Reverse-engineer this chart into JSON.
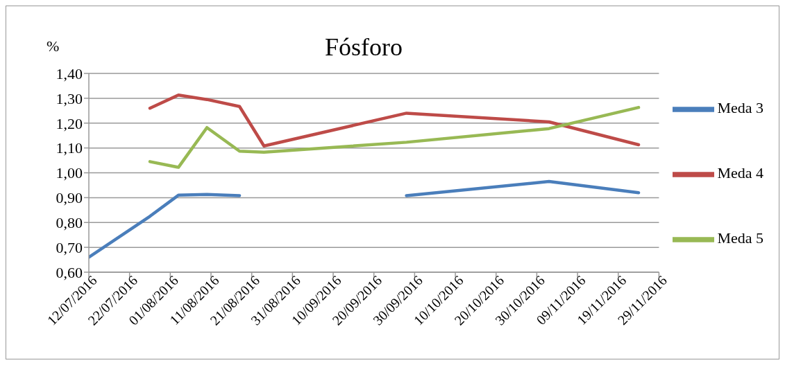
{
  "chart_data": {
    "type": "line",
    "title": "Fósforo",
    "ylabel": "%",
    "x": [
      "2016-07-12",
      "2016-07-27",
      "2016-08-03",
      "2016-08-10",
      "2016-08-18",
      "2016-08-24",
      "2016-09-28",
      "2016-11-02",
      "2016-11-24"
    ],
    "series": [
      {
        "name": "Meda 3",
        "color": "#4a7ebb",
        "values": [
          0.66,
          0.825,
          0.91,
          0.913,
          0.908,
          null,
          0.908,
          0.965,
          0.92
        ]
      },
      {
        "name": "Meda 4",
        "color": "#be4b48",
        "values": [
          null,
          1.26,
          1.313,
          1.295,
          1.267,
          1.108,
          1.24,
          1.205,
          1.113
        ]
      },
      {
        "name": "Meda 5",
        "color": "#98b954",
        "values": [
          null,
          1.045,
          1.022,
          1.182,
          1.087,
          1.083,
          1.123,
          1.178,
          1.263
        ]
      }
    ],
    "xlim": [
      "2016-07-12",
      "2016-11-29"
    ],
    "xticks": [
      {
        "value": "2016-07-12",
        "label": "12/07/2016"
      },
      {
        "value": "2016-07-22",
        "label": "22/07/2016"
      },
      {
        "value": "2016-08-01",
        "label": "01/08/2016"
      },
      {
        "value": "2016-08-11",
        "label": "11/08/2016"
      },
      {
        "value": "2016-08-21",
        "label": "21/08/2016"
      },
      {
        "value": "2016-08-31",
        "label": "31/08/2016"
      },
      {
        "value": "2016-09-10",
        "label": "10/09/2016"
      },
      {
        "value": "2016-09-20",
        "label": "20/09/2016"
      },
      {
        "value": "2016-09-30",
        "label": "30/09/2016"
      },
      {
        "value": "2016-10-10",
        "label": "10/10/2016"
      },
      {
        "value": "2016-10-20",
        "label": "20/10/2016"
      },
      {
        "value": "2016-10-30",
        "label": "30/10/2016"
      },
      {
        "value": "2016-11-09",
        "label": "09/11/2016"
      },
      {
        "value": "2016-11-19",
        "label": "19/11/2016"
      },
      {
        "value": "2016-11-29",
        "label": "29/11/2016"
      }
    ],
    "ylim": [
      0.6,
      1.4
    ],
    "yticks": [
      {
        "value": 0.6,
        "label": "0,60"
      },
      {
        "value": 0.7,
        "label": "0,70"
      },
      {
        "value": 0.8,
        "label": "0,80"
      },
      {
        "value": 0.9,
        "label": "0,90"
      },
      {
        "value": 1.0,
        "label": "1,00"
      },
      {
        "value": 1.1,
        "label": "1,10"
      },
      {
        "value": 1.2,
        "label": "1,20"
      },
      {
        "value": 1.3,
        "label": "1,30"
      },
      {
        "value": 1.4,
        "label": "1,40"
      }
    ],
    "grid": "y",
    "legend": "right",
    "marker": "none",
    "line_style": "solid"
  }
}
